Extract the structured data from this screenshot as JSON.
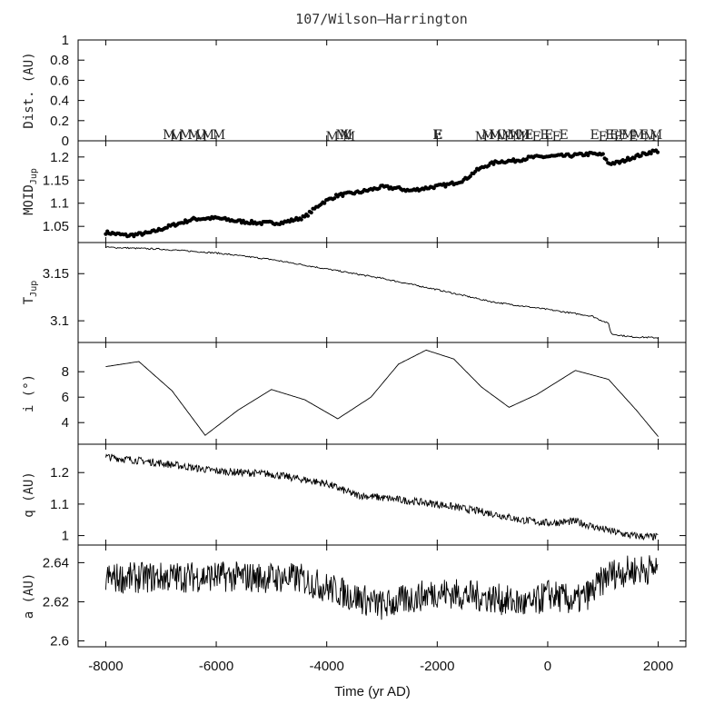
{
  "title": "107/Wilson–Harrington",
  "chart_data": {
    "type": "line",
    "x_range": [
      -8500,
      2500
    ],
    "x_ticks": [
      -8000,
      -6000,
      -4000,
      -2000,
      0,
      2000
    ],
    "xlabel": "Time (yr AD)",
    "panels": [
      {
        "id": "dist",
        "ylabel": "Dist. (AU)",
        "ylim": [
          0,
          1
        ],
        "y_ticks": [
          0,
          0.2,
          0.4,
          0.6,
          0.8,
          1
        ],
        "y_tick_labels": [
          "0",
          "0.2",
          "0.4",
          "0.6",
          "0.8",
          "1"
        ],
        "encounters": [
          {
            "x": -6850,
            "label": "M"
          },
          {
            "x": -6720,
            "label": "M"
          },
          {
            "x": -6550,
            "label": "M"
          },
          {
            "x": -6400,
            "label": "M"
          },
          {
            "x": -6280,
            "label": "M"
          },
          {
            "x": -6150,
            "label": "M"
          },
          {
            "x": -5950,
            "label": "M"
          },
          {
            "x": -3900,
            "label": "M"
          },
          {
            "x": -3720,
            "label": "M"
          },
          {
            "x": -3650,
            "label": "M"
          },
          {
            "x": -3600,
            "label": "M"
          },
          {
            "x": -2000,
            "label": "E"
          },
          {
            "x": -1980,
            "label": "E"
          },
          {
            "x": -1200,
            "label": "M"
          },
          {
            "x": -1080,
            "label": "M"
          },
          {
            "x": -950,
            "label": "M"
          },
          {
            "x": -820,
            "label": "M"
          },
          {
            "x": -720,
            "label": "M"
          },
          {
            "x": -620,
            "label": "M"
          },
          {
            "x": -520,
            "label": "M"
          },
          {
            "x": -430,
            "label": "M"
          },
          {
            "x": -340,
            "label": "E"
          },
          {
            "x": -200,
            "label": "E"
          },
          {
            "x": -60,
            "label": "E"
          },
          {
            "x": 20,
            "label": "E"
          },
          {
            "x": 160,
            "label": "E"
          },
          {
            "x": 290,
            "label": "E"
          },
          {
            "x": 850,
            "label": "E"
          },
          {
            "x": 1000,
            "label": "E"
          },
          {
            "x": 1120,
            "label": "E"
          },
          {
            "x": 1200,
            "label": "E"
          },
          {
            "x": 1280,
            "label": "E"
          },
          {
            "x": 1360,
            "label": "E"
          },
          {
            "x": 1450,
            "label": "M"
          },
          {
            "x": 1550,
            "label": "E"
          },
          {
            "x": 1640,
            "label": "M"
          },
          {
            "x": 1740,
            "label": "E"
          },
          {
            "x": 1850,
            "label": "M"
          },
          {
            "x": 1960,
            "label": "M"
          }
        ]
      },
      {
        "id": "moid",
        "ylabel": "MOID",
        "ylabel_sub": "Jup",
        "ylim": [
          1.015,
          1.235
        ],
        "y_ticks": [
          1.05,
          1.1,
          1.15,
          1.2
        ],
        "y_tick_labels": [
          "1.05",
          "1.1",
          "1.15",
          "1.2"
        ],
        "style": "points",
        "keypoints": [
          [
            -8000,
            1.037
          ],
          [
            -7600,
            1.03
          ],
          [
            -7200,
            1.036
          ],
          [
            -6800,
            1.052
          ],
          [
            -6400,
            1.066
          ],
          [
            -6000,
            1.068
          ],
          [
            -5600,
            1.061
          ],
          [
            -5200,
            1.057
          ],
          [
            -4800,
            1.058
          ],
          [
            -4400,
            1.07
          ],
          [
            -4100,
            1.1
          ],
          [
            -3800,
            1.117
          ],
          [
            -3400,
            1.124
          ],
          [
            -3000,
            1.135
          ],
          [
            -2700,
            1.132
          ],
          [
            -2500,
            1.127
          ],
          [
            -2200,
            1.133
          ],
          [
            -1800,
            1.14
          ],
          [
            -1500,
            1.151
          ],
          [
            -1300,
            1.17
          ],
          [
            -1100,
            1.182
          ],
          [
            -900,
            1.19
          ],
          [
            -600,
            1.192
          ],
          [
            -300,
            1.199
          ],
          [
            0,
            1.201
          ],
          [
            400,
            1.203
          ],
          [
            800,
            1.207
          ],
          [
            1000,
            1.204
          ],
          [
            1100,
            1.186
          ],
          [
            1300,
            1.188
          ],
          [
            1500,
            1.198
          ],
          [
            1700,
            1.205
          ],
          [
            1900,
            1.212
          ],
          [
            2000,
            1.213
          ]
        ]
      },
      {
        "id": "tjup",
        "ylabel": "T",
        "ylabel_sub": "Jup",
        "ylim": [
          3.077,
          3.183
        ],
        "y_ticks": [
          3.1,
          3.15
        ],
        "y_tick_labels": [
          "3.1",
          "3.15"
        ],
        "style": "line",
        "keypoints": [
          [
            -8000,
            3.178
          ],
          [
            -7000,
            3.176
          ],
          [
            -6000,
            3.172
          ],
          [
            -5000,
            3.165
          ],
          [
            -4000,
            3.155
          ],
          [
            -3000,
            3.145
          ],
          [
            -2000,
            3.133
          ],
          [
            -1000,
            3.12
          ],
          [
            0,
            3.112
          ],
          [
            800,
            3.105
          ],
          [
            1100,
            3.097
          ],
          [
            1150,
            3.086
          ],
          [
            1500,
            3.083
          ],
          [
            2000,
            3.082
          ]
        ]
      },
      {
        "id": "incl",
        "ylabel": "i (°)",
        "ylim": [
          2.3,
          10.3
        ],
        "y_ticks": [
          4,
          6,
          8
        ],
        "y_tick_labels": [
          "4",
          "6",
          "8"
        ],
        "style": "line",
        "keypoints": [
          [
            -8000,
            8.4
          ],
          [
            -7400,
            8.8
          ],
          [
            -6800,
            6.5
          ],
          [
            -6200,
            3.0
          ],
          [
            -5600,
            5.0
          ],
          [
            -5000,
            6.6
          ],
          [
            -4400,
            5.8
          ],
          [
            -3800,
            4.3
          ],
          [
            -3200,
            6.0
          ],
          [
            -2700,
            8.6
          ],
          [
            -2200,
            9.7
          ],
          [
            -1700,
            9.0
          ],
          [
            -1200,
            6.8
          ],
          [
            -700,
            5.2
          ],
          [
            -200,
            6.2
          ],
          [
            500,
            8.1
          ],
          [
            1100,
            7.4
          ],
          [
            1600,
            5.0
          ],
          [
            2000,
            2.9
          ]
        ]
      },
      {
        "id": "q",
        "ylabel": "q (AU)",
        "ylim": [
          0.97,
          1.29
        ],
        "y_ticks": [
          1,
          1.1,
          1.2
        ],
        "y_tick_labels": [
          "1",
          "1.1",
          "1.2"
        ],
        "style": "line",
        "keypoints": [
          [
            -8000,
            1.25
          ],
          [
            -7000,
            1.23
          ],
          [
            -6000,
            1.205
          ],
          [
            -5000,
            1.195
          ],
          [
            -4000,
            1.165
          ],
          [
            -3500,
            1.13
          ],
          [
            -3000,
            1.12
          ],
          [
            -2000,
            1.1
          ],
          [
            -1000,
            1.07
          ],
          [
            -500,
            1.05
          ],
          [
            0,
            1.04
          ],
          [
            500,
            1.045
          ],
          [
            1000,
            1.02
          ],
          [
            1500,
            1.0
          ],
          [
            2000,
            0.995
          ]
        ],
        "jitter": 0.012
      },
      {
        "id": "a",
        "ylabel": "a (AU)",
        "ylim": [
          2.597,
          2.649
        ],
        "y_ticks": [
          2.6,
          2.62,
          2.64
        ],
        "y_tick_labels": [
          "2.6",
          "2.62",
          "2.64"
        ],
        "style": "line",
        "keypoints": [
          [
            -8000,
            2.632
          ],
          [
            -6000,
            2.633
          ],
          [
            -4500,
            2.632
          ],
          [
            -3000,
            2.618
          ],
          [
            -2000,
            2.625
          ],
          [
            -1000,
            2.622
          ],
          [
            -300,
            2.618
          ],
          [
            0,
            2.624
          ],
          [
            500,
            2.62
          ],
          [
            800,
            2.625
          ],
          [
            1100,
            2.634
          ],
          [
            1500,
            2.636
          ],
          [
            2000,
            2.637
          ]
        ],
        "jitter": 0.008
      }
    ]
  }
}
